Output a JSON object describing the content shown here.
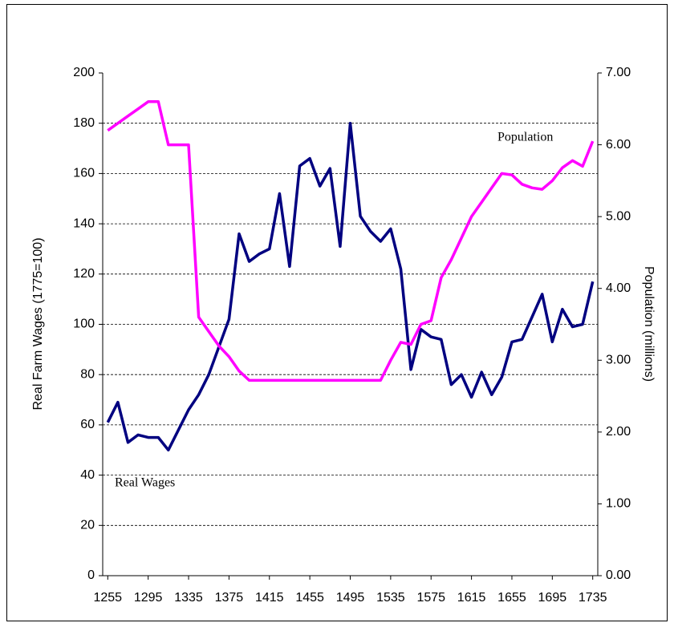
{
  "chart_data": {
    "type": "line",
    "y_label": "Real Farm Wages  (1775=100)",
    "y2_label": "Population  (millions)",
    "annotations": [
      "Population",
      "Real Wages"
    ],
    "x": [
      1255,
      1265,
      1275,
      1285,
      1295,
      1305,
      1315,
      1325,
      1335,
      1345,
      1355,
      1365,
      1375,
      1385,
      1395,
      1405,
      1415,
      1425,
      1435,
      1445,
      1455,
      1465,
      1475,
      1485,
      1495,
      1505,
      1515,
      1525,
      1535,
      1545,
      1555,
      1565,
      1575,
      1585,
      1595,
      1605,
      1615,
      1625,
      1635,
      1645,
      1655,
      1665,
      1675,
      1685,
      1695,
      1705,
      1715,
      1725,
      1735
    ],
    "xlim": [
      1250,
      1740
    ],
    "xticks": [
      1255,
      1295,
      1335,
      1375,
      1415,
      1455,
      1495,
      1535,
      1575,
      1615,
      1655,
      1695,
      1735
    ],
    "ylim": [
      0,
      200
    ],
    "yticks": [
      0,
      20,
      40,
      60,
      80,
      100,
      120,
      140,
      160,
      180,
      200
    ],
    "y2lim": [
      0,
      7
    ],
    "y2ticks": [
      {
        "value": 0,
        "label": "0.00"
      },
      {
        "value": 1,
        "label": "1.00"
      },
      {
        "value": 2,
        "label": "2.00"
      },
      {
        "value": 3,
        "label": "3.00"
      },
      {
        "value": 4,
        "label": "4.00"
      },
      {
        "value": 5,
        "label": "5.00"
      },
      {
        "value": 6,
        "label": "6.00"
      },
      {
        "value": 7,
        "label": "7.00"
      }
    ],
    "grid": true,
    "series": [
      {
        "name": "Real Wages",
        "color": "#000080",
        "values": [
          61,
          69,
          53,
          56,
          55,
          55,
          50,
          58,
          66,
          72,
          80,
          91,
          102,
          136,
          125,
          128,
          130,
          152,
          123,
          163,
          166,
          155,
          162,
          131,
          180,
          143,
          137,
          133,
          138,
          122,
          82,
          98,
          95,
          94,
          76,
          80,
          71,
          81,
          72,
          79,
          93,
          94,
          103,
          112,
          93,
          106,
          99,
          100,
          117
        ]
      },
      {
        "name": "Population",
        "color": "#ff00ff",
        "axis": "y2",
        "values": [
          6.2,
          6.3,
          6.4,
          6.5,
          6.6,
          6.6,
          6.0,
          6.0,
          6.0,
          3.6,
          3.4,
          3.2,
          3.05,
          2.85,
          2.72,
          2.72,
          2.72,
          2.72,
          2.72,
          2.72,
          2.72,
          2.72,
          2.72,
          2.72,
          2.72,
          2.72,
          2.72,
          2.72,
          3.0,
          3.25,
          3.22,
          3.5,
          3.55,
          4.15,
          4.4,
          4.7,
          5.0,
          5.2,
          5.4,
          5.6,
          5.58,
          5.45,
          5.4,
          5.38,
          5.5,
          5.68,
          5.78,
          5.7,
          6.05
        ]
      }
    ]
  }
}
